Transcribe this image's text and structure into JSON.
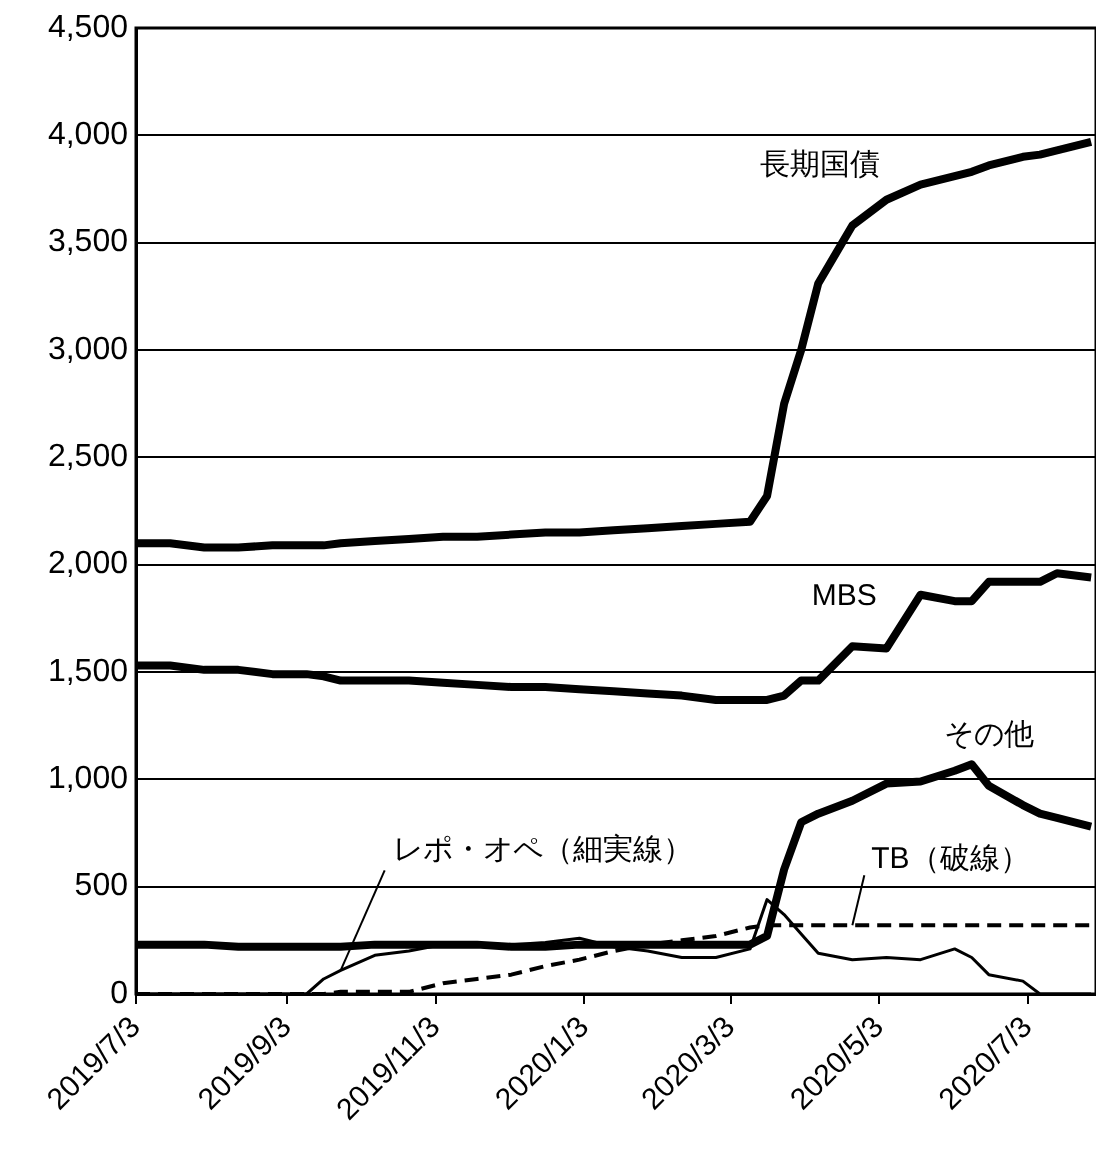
{
  "chart_data": {
    "type": "line",
    "x": [
      "2019-07-03",
      "2019-07-17",
      "2019-07-31",
      "2019-08-14",
      "2019-08-28",
      "2019-09-11",
      "2019-09-18",
      "2019-09-25",
      "2019-10-09",
      "2019-10-23",
      "2019-11-06",
      "2019-11-20",
      "2019-12-04",
      "2019-12-18",
      "2020-01-01",
      "2020-01-15",
      "2020-01-29",
      "2020-02-12",
      "2020-02-26",
      "2020-03-11",
      "2020-03-18",
      "2020-03-25",
      "2020-04-01",
      "2020-04-08",
      "2020-04-22",
      "2020-05-06",
      "2020-05-20",
      "2020-06-03",
      "2020-06-10",
      "2020-06-17",
      "2020-07-01",
      "2020-07-08",
      "2020-07-15",
      "2020-07-29"
    ],
    "series": [
      {
        "name": "長期国債",
        "color": "#000000",
        "values": [
          2100,
          2100,
          2080,
          2080,
          2090,
          2090,
          2090,
          2100,
          2110,
          2120,
          2130,
          2130,
          2140,
          2150,
          2150,
          2160,
          2170,
          2180,
          2190,
          2200,
          2320,
          2750,
          3000,
          3310,
          3580,
          3700,
          3770,
          3810,
          3830,
          3860,
          3900,
          3910,
          3930,
          3970
        ]
      },
      {
        "name": "MBS",
        "color": "#000000",
        "values": [
          1530,
          1530,
          1510,
          1510,
          1490,
          1490,
          1480,
          1460,
          1460,
          1460,
          1450,
          1440,
          1430,
          1430,
          1420,
          1410,
          1400,
          1390,
          1370,
          1370,
          1370,
          1390,
          1460,
          1460,
          1620,
          1610,
          1860,
          1830,
          1830,
          1920,
          1920,
          1920,
          1960,
          1940
        ]
      },
      {
        "name": "その他",
        "color": "#000000",
        "values": [
          230,
          230,
          230,
          220,
          220,
          220,
          220,
          220,
          230,
          230,
          230,
          230,
          220,
          220,
          230,
          230,
          230,
          230,
          230,
          230,
          270,
          580,
          800,
          840,
          900,
          980,
          990,
          1040,
          1070,
          970,
          880,
          840,
          820,
          780
        ]
      },
      {
        "name": "レポ・オペ（細実線）",
        "color": "#000000",
        "values": [
          0,
          0,
          0,
          0,
          0,
          0,
          70,
          110,
          180,
          200,
          230,
          230,
          230,
          240,
          260,
          220,
          200,
          170,
          170,
          210,
          440,
          370,
          280,
          190,
          160,
          170,
          160,
          210,
          170,
          90,
          60,
          0,
          0,
          0
        ]
      },
      {
        "name": "TB（破線）",
        "color": "#000000",
        "line_style": "dashed",
        "values": [
          0,
          0,
          0,
          0,
          0,
          0,
          0,
          10,
          10,
          10,
          50,
          70,
          90,
          130,
          160,
          200,
          230,
          250,
          270,
          310,
          320,
          320,
          320,
          320,
          320,
          320,
          320,
          320,
          320,
          320,
          320,
          320,
          320,
          320
        ]
      }
    ],
    "xlim": [
      "2019-07-03",
      "2020-07-31"
    ],
    "xticks": [
      {
        "value": "2019-07-03",
        "label": "2019/7/3"
      },
      {
        "value": "2019-09-03",
        "label": "2019/9/3"
      },
      {
        "value": "2019-11-03",
        "label": "2019/11/3"
      },
      {
        "value": "2020-01-03",
        "label": "2020/1/3"
      },
      {
        "value": "2020-03-03",
        "label": "2020/3/3"
      },
      {
        "value": "2020-05-03",
        "label": "2020/5/3"
      },
      {
        "value": "2020-07-03",
        "label": "2020/7/3"
      }
    ],
    "ylim": [
      0,
      4500
    ],
    "yticks": [
      {
        "value": 0,
        "label": "0"
      },
      {
        "value": 500,
        "label": "500"
      },
      {
        "value": 1000,
        "label": "1,000"
      },
      {
        "value": 1500,
        "label": "1,500"
      },
      {
        "value": 2000,
        "label": "2,000"
      },
      {
        "value": 2500,
        "label": "2,500"
      },
      {
        "value": 3000,
        "label": "3,000"
      },
      {
        "value": 3500,
        "label": "3,500"
      },
      {
        "value": 4000,
        "label": "4,000"
      },
      {
        "value": 4500,
        "label": "4,500"
      }
    ],
    "grid": "y",
    "legend": false,
    "marker": "none"
  }
}
